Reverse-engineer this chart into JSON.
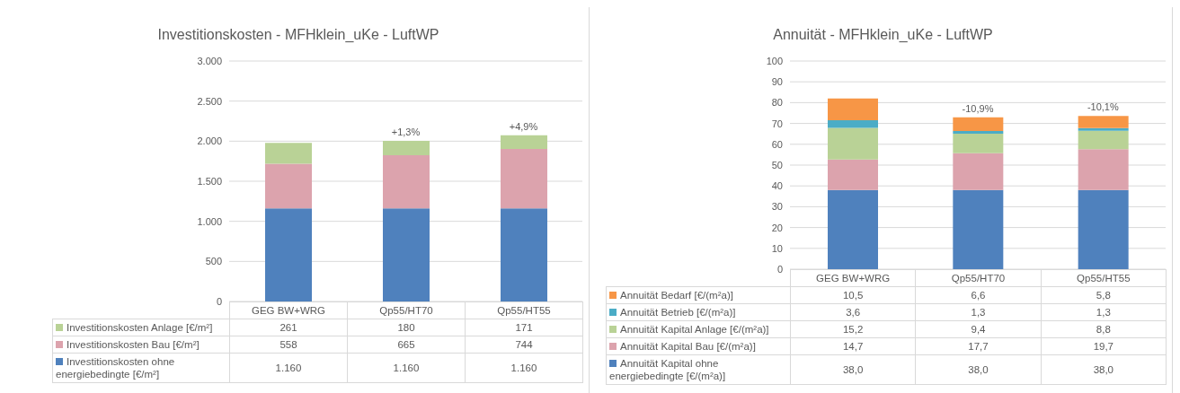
{
  "chart_data": [
    {
      "type": "bar",
      "title": "Investitionskosten - MFHklein_uKe - LuftWP",
      "categories": [
        "GEG BW+WRG",
        "Qp55/HT70",
        "Qp55/HT55"
      ],
      "stacked": true,
      "grid": "y",
      "legend": "bottom",
      "ylim": [
        0,
        3000
      ],
      "yticks": [
        0,
        {
          "value": 500,
          "label": "500"
        },
        {
          "value": 1000,
          "label": "1.000"
        },
        {
          "value": 1500,
          "label": "1.500"
        },
        {
          "value": 2000,
          "label": "2.000"
        },
        {
          "value": 2500,
          "label": "2.500"
        },
        {
          "value": 3000,
          "label": "3.000"
        }
      ],
      "series": [
        {
          "name": "Investitionskosten ohne energiebedingte [€/m²]",
          "color": "#4f81bd",
          "values": [
            1160,
            1160,
            1160
          ],
          "value_labels": [
            "1.160",
            "1.160",
            "1.160"
          ]
        },
        {
          "name": "Investitionskosten Bau [€/m²]",
          "color": "#dca3ad",
          "values": [
            558,
            665,
            744
          ],
          "value_labels": [
            "558",
            "665",
            "744"
          ]
        },
        {
          "name": "Investitionskosten Anlage [€/m²]",
          "color": "#b9d296",
          "values": [
            261,
            180,
            171
          ],
          "value_labels": [
            "261",
            "180",
            "171"
          ]
        }
      ],
      "annotations": [
        {
          "text": "+1,3%",
          "x": "Qp55/HT70",
          "y": 2005
        },
        {
          "text": "+4,9%",
          "x": "Qp55/HT55",
          "y": 2075
        }
      ]
    },
    {
      "type": "bar",
      "title": "Annuität - MFHklein_uKe - LuftWP",
      "categories": [
        "GEG BW+WRG",
        "Qp55/HT70",
        "Qp55/HT55"
      ],
      "stacked": true,
      "grid": "y",
      "legend": "bottom",
      "ylim": [
        0,
        100
      ],
      "yticks": [
        0,
        10,
        20,
        30,
        40,
        50,
        60,
        70,
        80,
        90,
        100
      ],
      "series": [
        {
          "name": "Annuität Kapital ohne energiebedingte [€/(m²a)]",
          "color": "#4f81bd",
          "values": [
            38.0,
            38.0,
            38.0
          ],
          "value_labels": [
            "38,0",
            "38,0",
            "38,0"
          ]
        },
        {
          "name": "Annuität Kapital Bau [€/(m²a)]",
          "color": "#dca3ad",
          "values": [
            14.7,
            17.7,
            19.7
          ],
          "value_labels": [
            "14,7",
            "17,7",
            "19,7"
          ]
        },
        {
          "name": "Annuität Kapital Anlage [€/(m²a)]",
          "color": "#b9d296",
          "values": [
            15.2,
            9.4,
            8.8
          ],
          "value_labels": [
            "15,2",
            "9,4",
            "8,8"
          ]
        },
        {
          "name": "Annuität Betrieb  [€/(m²a)]",
          "color": "#4bacc6",
          "values": [
            3.6,
            1.3,
            1.3
          ],
          "value_labels": [
            "3,6",
            "1,3",
            "1,3"
          ]
        },
        {
          "name": "Annuität Bedarf  [€/(m²a)]",
          "color": "#f79646",
          "values": [
            10.5,
            6.6,
            5.8
          ],
          "value_labels": [
            "10,5",
            "6,6",
            "5,8"
          ]
        }
      ],
      "annotations": [
        {
          "text": "-10,9%",
          "x": "Qp55/HT70",
          "y": 73.0
        },
        {
          "text": "-10,1%",
          "x": "Qp55/HT55",
          "y": 73.6
        }
      ]
    }
  ]
}
